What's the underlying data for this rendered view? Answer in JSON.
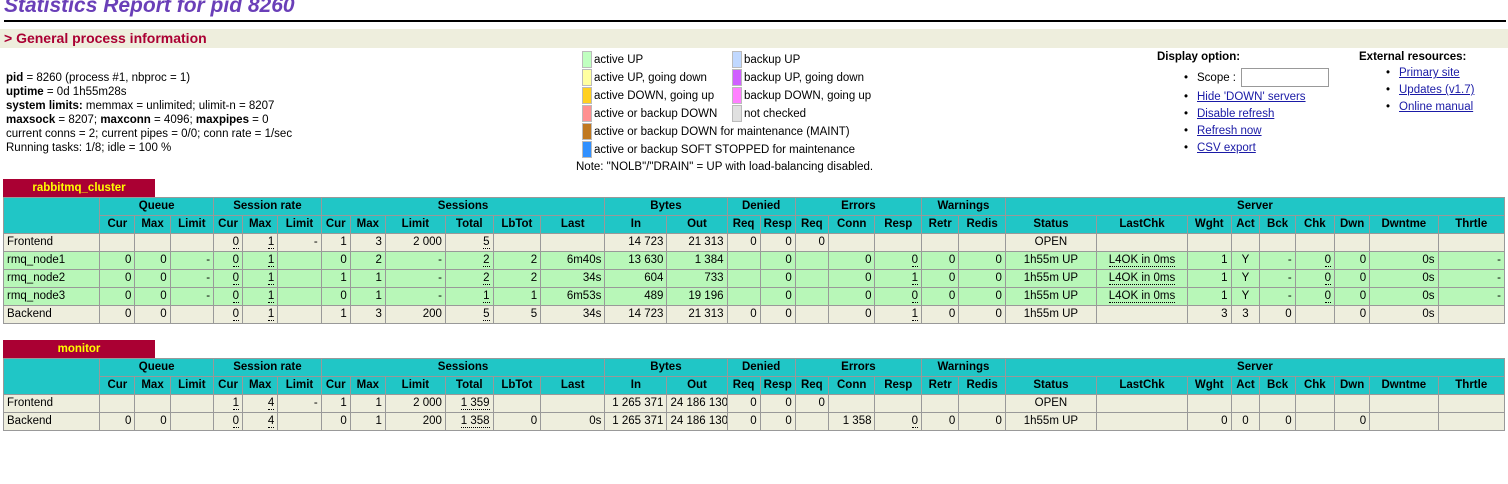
{
  "page": {
    "title": "Statistics Report for pid 8260",
    "section_title": "> General process information"
  },
  "process_info": [
    {
      "bold": "pid",
      "text": " = 8260 (process #1, nbproc = 1)"
    },
    {
      "bold": "uptime",
      "text": " = 0d 1h55m28s"
    },
    {
      "bold": "system limits:",
      "text": " memmax = unlimited; ulimit-n = 8207"
    },
    {
      "bold": "maxsock",
      "text": " = 8207; ",
      "bold2": "maxconn",
      "text2": " = 4096; ",
      "bold3": "maxpipes",
      "text3": " = 0"
    },
    {
      "bold": "",
      "text": "current conns = 2; current pipes = 0/0; conn rate = 1/sec"
    },
    {
      "bold": "",
      "text": "Running tasks: 1/8; idle = 100 %"
    }
  ],
  "legend": {
    "col1": [
      {
        "label": "active UP",
        "color": "#c0ffc0"
      },
      {
        "label": "active UP, going down",
        "color": "#ffffa0"
      },
      {
        "label": "active DOWN, going up",
        "color": "#ffd020"
      },
      {
        "label": "active or backup DOWN",
        "color": "#ff9090"
      },
      {
        "label": "active or backup DOWN for maintenance (MAINT)",
        "color": "#c07820"
      },
      {
        "label": "active or backup SOFT STOPPED for maintenance",
        "color": "#3090ff"
      }
    ],
    "col2": [
      {
        "label": "backup UP",
        "color": "#c0d8ff"
      },
      {
        "label": "backup UP, going down",
        "color": "#d060ff"
      },
      {
        "label": "backup DOWN, going up",
        "color": "#ff80ff"
      },
      {
        "label": "not checked",
        "color": "#e0e0e0"
      }
    ],
    "note": "Note: \"NOLB\"/\"DRAIN\" = UP with load-balancing disabled."
  },
  "display_option": {
    "title": "Display option:",
    "scope_label": "Scope :",
    "scope_value": "",
    "links": [
      "Hide 'DOWN' servers",
      "Disable refresh",
      "Refresh now",
      "CSV export"
    ]
  },
  "external_resources": {
    "title": "External resources:",
    "links": [
      "Primary site",
      "Updates (v1.7)",
      "Online manual"
    ]
  },
  "header_groups": [
    "Queue",
    "Session rate",
    "Sessions",
    "Bytes",
    "Denied",
    "Errors",
    "Warnings",
    "Server"
  ],
  "header_cols": [
    "Cur",
    "Max",
    "Limit",
    "Cur",
    "Max",
    "Limit",
    "Cur",
    "Max",
    "Limit",
    "Total",
    "LbTot",
    "Last",
    "In",
    "Out",
    "Req",
    "Resp",
    "Req",
    "Conn",
    "Resp",
    "Retr",
    "Redis",
    "Status",
    "LastChk",
    "Wght",
    "Act",
    "Bck",
    "Chk",
    "Dwn",
    "Dwntme",
    "Thrtle"
  ],
  "proxies": [
    {
      "name": "rabbitmq_cluster",
      "rows": [
        {
          "type": "frontend",
          "cells": [
            "Frontend",
            "",
            "",
            "",
            "0",
            "1",
            "-",
            "1",
            "3",
            "2 000",
            "5",
            "",
            "",
            "14 723",
            "21 313",
            "0",
            "0",
            "0",
            "",
            "",
            "",
            "",
            "OPEN",
            "",
            "",
            "",
            "",
            "",
            "",
            "",
            ""
          ]
        },
        {
          "type": "up",
          "cells": [
            "rmq_node1",
            "0",
            "0",
            "-",
            "0",
            "1",
            "",
            "0",
            "2",
            "-",
            "2",
            "2",
            "6m40s",
            "13 630",
            "1 384",
            "",
            "0",
            "",
            "0",
            "0",
            "0",
            "0",
            "1h55m UP",
            "L4OK in 0ms",
            "1",
            "Y",
            "-",
            "0",
            "0",
            "0s",
            "-"
          ]
        },
        {
          "type": "up",
          "cells": [
            "rmq_node2",
            "0",
            "0",
            "-",
            "0",
            "1",
            "",
            "1",
            "1",
            "-",
            "2",
            "2",
            "34s",
            "604",
            "733",
            "",
            "0",
            "",
            "0",
            "1",
            "0",
            "0",
            "1h55m UP",
            "L4OK in 0ms",
            "1",
            "Y",
            "-",
            "0",
            "0",
            "0s",
            "-"
          ]
        },
        {
          "type": "up",
          "cells": [
            "rmq_node3",
            "0",
            "0",
            "-",
            "0",
            "1",
            "",
            "0",
            "1",
            "-",
            "1",
            "1",
            "6m53s",
            "489",
            "19 196",
            "",
            "0",
            "",
            "0",
            "0",
            "0",
            "0",
            "1h55m UP",
            "L4OK in 0ms",
            "1",
            "Y",
            "-",
            "0",
            "0",
            "0s",
            "-"
          ]
        },
        {
          "type": "backend",
          "cells": [
            "Backend",
            "0",
            "0",
            "",
            "0",
            "1",
            "",
            "1",
            "3",
            "200",
            "5",
            "5",
            "34s",
            "14 723",
            "21 313",
            "0",
            "0",
            "",
            "0",
            "1",
            "0",
            "0",
            "1h55m UP",
            "",
            "3",
            "3",
            "0",
            "",
            "0",
            "0s",
            ""
          ]
        }
      ]
    },
    {
      "name": "monitor",
      "rows": [
        {
          "type": "frontend",
          "cells": [
            "Frontend",
            "",
            "",
            "",
            "1",
            "4",
            "-",
            "1",
            "1",
            "2 000",
            "1 359",
            "",
            "",
            "1 265 371",
            "24 186 130",
            "0",
            "0",
            "0",
            "",
            "",
            "",
            "",
            "OPEN",
            "",
            "",
            "",
            "",
            "",
            "",
            "",
            ""
          ]
        },
        {
          "type": "backend",
          "cells": [
            "Backend",
            "0",
            "0",
            "",
            "0",
            "4",
            "",
            "0",
            "1",
            "200",
            "1 358",
            "0",
            "0s",
            "1 265 371",
            "24 186 130",
            "0",
            "0",
            "",
            "1 358",
            "0",
            "0",
            "0",
            "1h55m UP",
            "",
            "0",
            "0",
            "0",
            "",
            "0",
            "",
            ""
          ]
        }
      ]
    }
  ]
}
